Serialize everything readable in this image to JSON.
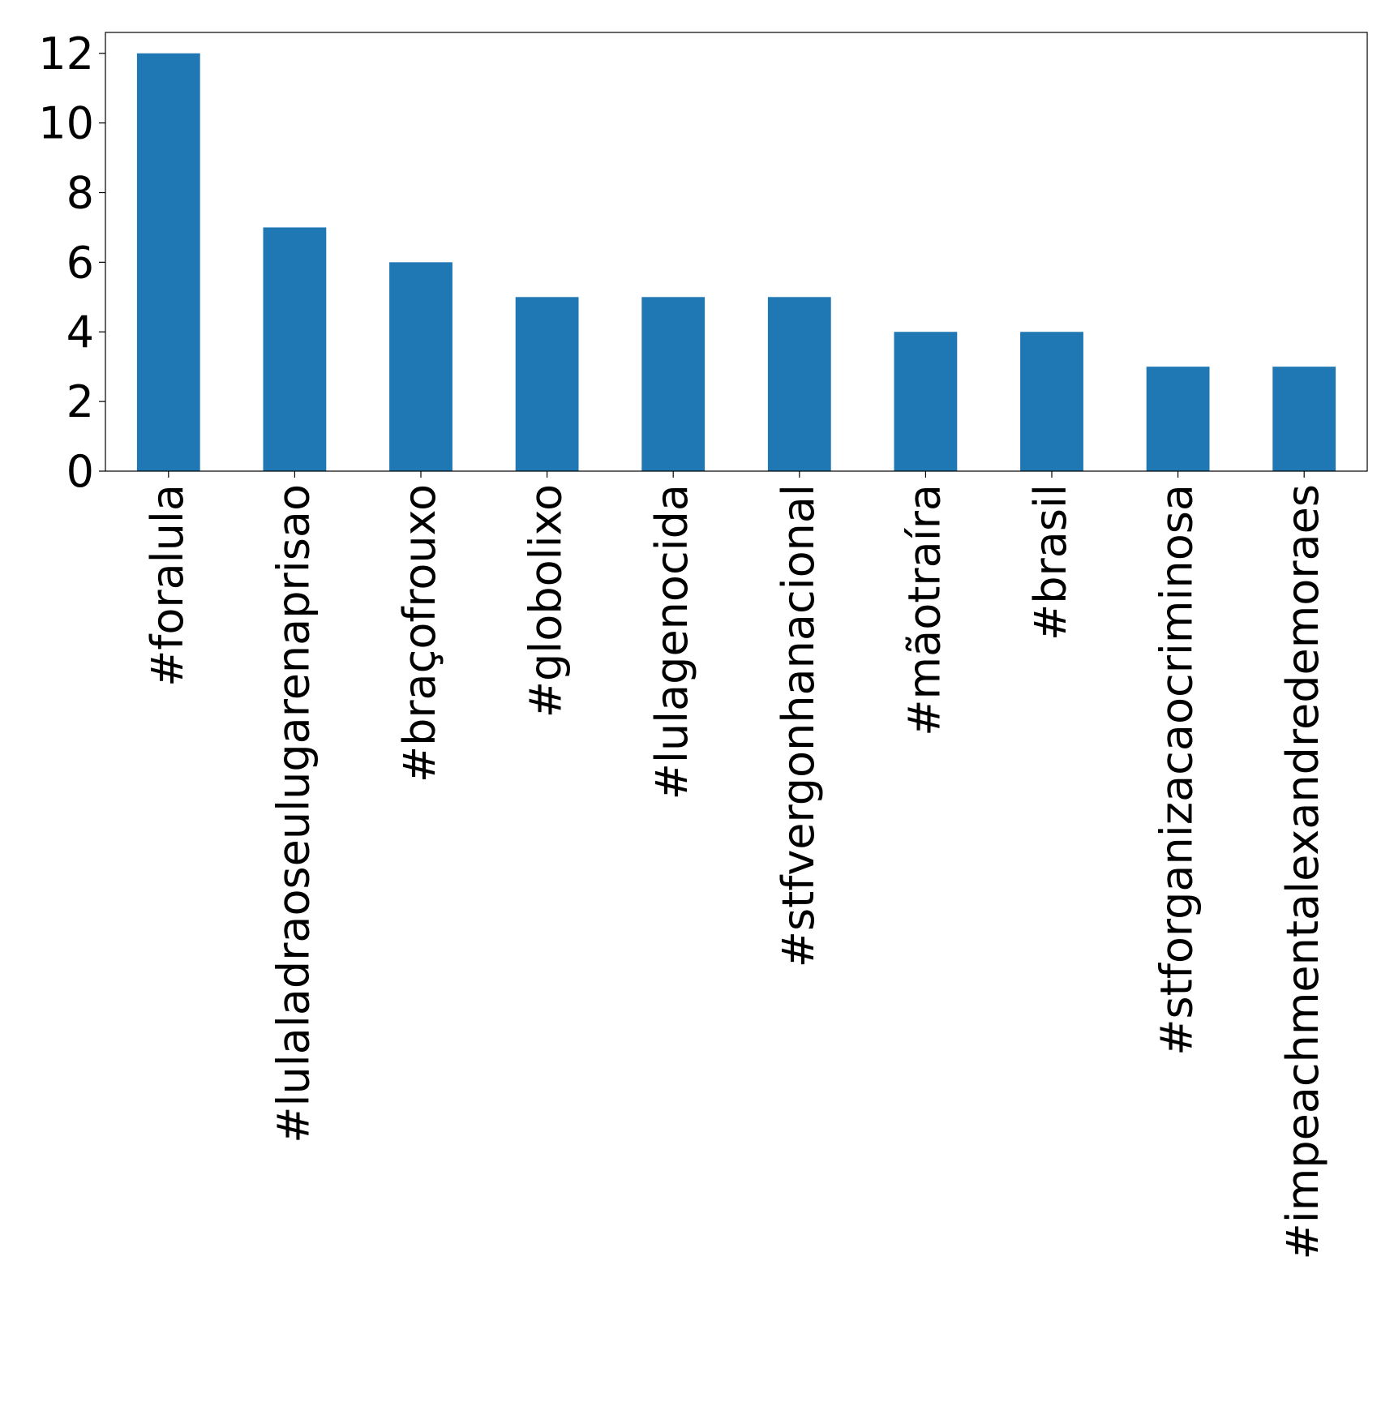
{
  "chart_data": {
    "type": "bar",
    "title": "",
    "xlabel": "",
    "ylabel": "",
    "categories": [
      "#foralula",
      "#lulaladraoseulugarenaprisao",
      "#braçofrouxo",
      "#globolixo",
      "#lulagenocida",
      "#stfvergonhanacional",
      "#mãotraíra",
      "#brasil",
      "#stforganizacaocriminosa",
      "#impeachmentalexandredemoraes"
    ],
    "values": [
      12,
      7,
      6,
      5,
      5,
      5,
      4,
      4,
      3,
      3
    ],
    "ylim": [
      0,
      12.6
    ],
    "yticks": [
      0,
      2,
      4,
      6,
      8,
      10,
      12
    ],
    "grid": false,
    "legend": "none",
    "bar_color": "#1f77b4"
  }
}
